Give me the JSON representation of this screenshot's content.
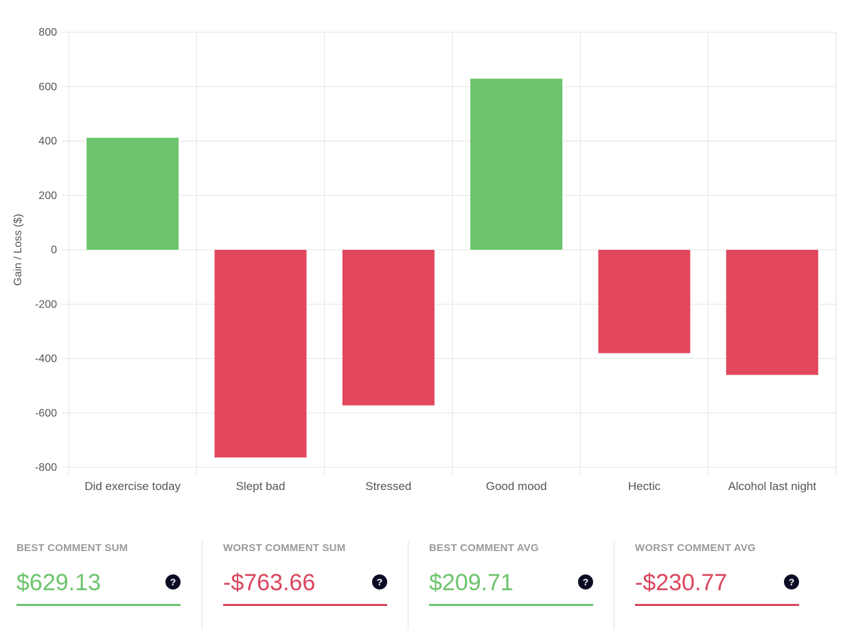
{
  "chart_data": {
    "type": "bar",
    "categories": [
      "Did exercise today",
      "Slept bad",
      "Stressed",
      "Good mood",
      "Hectic",
      "Alcohol last night"
    ],
    "values": [
      412,
      -763.66,
      -572,
      629.13,
      -380,
      -460
    ],
    "title": "",
    "xlabel": "",
    "ylabel": "Gain / Loss ($)",
    "ylim": [
      -800,
      800
    ],
    "yticks": [
      800,
      600,
      400,
      200,
      0,
      -200,
      -400,
      -600,
      -800
    ],
    "ytick_labels": [
      "800",
      "600",
      "400",
      "200",
      "0",
      "-200",
      "-400",
      "-600",
      "-800"
    ],
    "grid": true,
    "colors": {
      "positive": "#6cc46c",
      "negative": "#e2475d"
    }
  },
  "stats": [
    {
      "title": "BEST COMMENT SUM",
      "value": "$629.13",
      "color": "#6cc46c",
      "icon": "help-icon",
      "icon_glyph": "?"
    },
    {
      "title": "WORST COMMENT SUM",
      "value": "-$763.66",
      "color": "#d9465e",
      "icon": "help-icon",
      "icon_glyph": "?"
    },
    {
      "title": "BEST COMMENT AVG",
      "value": "$209.71",
      "color": "#6cc46c",
      "icon": "help-icon",
      "icon_glyph": "?"
    },
    {
      "title": "WORST COMMENT AVG",
      "value": "-$230.77",
      "color": "#d9465e",
      "icon": "help-icon",
      "icon_glyph": "?"
    }
  ]
}
